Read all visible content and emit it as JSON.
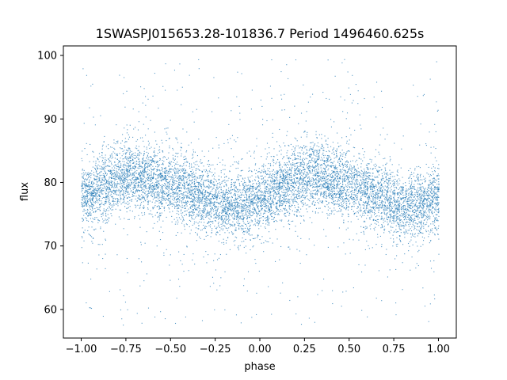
{
  "chart_data": {
    "type": "scatter",
    "title": "1SWASPJ015653.28-101836.7 Period 1496460.625s",
    "xlabel": "phase",
    "ylabel": "flux",
    "xlim": [
      -1.1,
      1.1
    ],
    "ylim": [
      55.5,
      101.5
    ],
    "xticks": [
      -1.0,
      -0.75,
      -0.5,
      -0.25,
      0.0,
      0.25,
      0.5,
      0.75,
      1.0
    ],
    "xtick_labels": [
      "−1.00",
      "−0.75",
      "−0.50",
      "−0.25",
      "0.00",
      "0.25",
      "0.50",
      "0.75",
      "1.00"
    ],
    "yticks": [
      60,
      70,
      80,
      90,
      100
    ],
    "ytick_labels": [
      "60",
      "70",
      "80",
      "90",
      "100"
    ],
    "grid": false,
    "marker_color": "#1f77b4",
    "series": [
      {
        "phase_range": [
          -1.0,
          1.0
        ],
        "profile": [
          {
            "x": -1.0,
            "median": 77.5,
            "spread": 2.6
          },
          {
            "x": -0.9,
            "median": 79.0,
            "spread": 2.6
          },
          {
            "x": -0.8,
            "median": 80.5,
            "spread": 2.6
          },
          {
            "x": -0.7,
            "median": 81.5,
            "spread": 2.6
          },
          {
            "x": -0.6,
            "median": 80.5,
            "spread": 2.6
          },
          {
            "x": -0.5,
            "median": 79.5,
            "spread": 2.6
          },
          {
            "x": -0.4,
            "median": 78.5,
            "spread": 2.6
          },
          {
            "x": -0.3,
            "median": 77.5,
            "spread": 2.6
          },
          {
            "x": -0.2,
            "median": 76.0,
            "spread": 2.6
          },
          {
            "x": -0.1,
            "median": 76.5,
            "spread": 2.6
          },
          {
            "x": 0.0,
            "median": 77.5,
            "spread": 2.6
          },
          {
            "x": 0.1,
            "median": 79.0,
            "spread": 2.6
          },
          {
            "x": 0.2,
            "median": 80.5,
            "spread": 2.6
          },
          {
            "x": 0.3,
            "median": 81.5,
            "spread": 2.6
          },
          {
            "x": 0.4,
            "median": 80.5,
            "spread": 2.6
          },
          {
            "x": 0.5,
            "median": 79.5,
            "spread": 2.6
          },
          {
            "x": 0.6,
            "median": 78.5,
            "spread": 2.6
          },
          {
            "x": 0.7,
            "median": 77.5,
            "spread": 2.6
          },
          {
            "x": 0.8,
            "median": 76.0,
            "spread": 2.6
          },
          {
            "x": 0.9,
            "median": 76.5,
            "spread": 2.6
          },
          {
            "x": 1.0,
            "median": 77.5,
            "spread": 2.6
          }
        ],
        "outlier_range": [
          57.5,
          100.0
        ]
      }
    ]
  }
}
